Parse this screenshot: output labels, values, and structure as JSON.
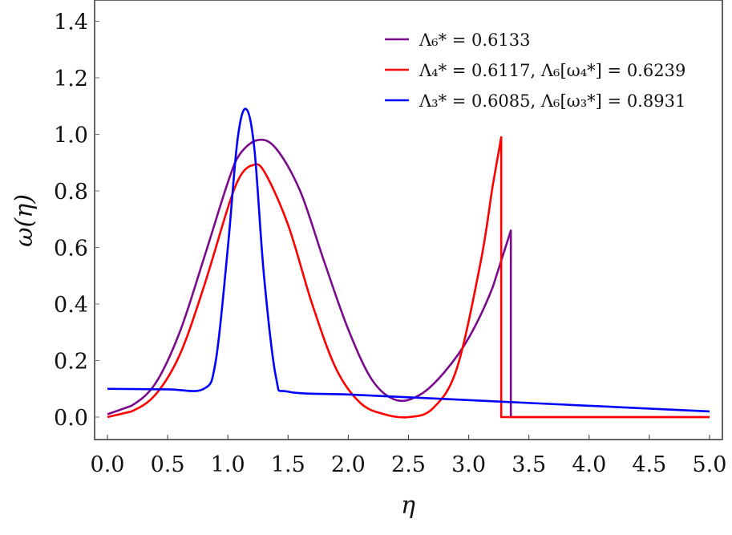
{
  "chart_data": {
    "type": "line",
    "title": "",
    "xlabel": "η",
    "ylabel": "ω(η)",
    "xlim": [
      -0.05,
      5.05
    ],
    "ylim": [
      -0.07,
      1.47
    ],
    "xticks": [
      "0.0",
      "0.5",
      "1.0",
      "1.5",
      "2.0",
      "2.5",
      "3.0",
      "3.5",
      "4.0",
      "4.5",
      "5.0"
    ],
    "yticks": [
      "0.0",
      "0.2",
      "0.4",
      "0.6",
      "0.8",
      "1.0",
      "1.2",
      "1.4"
    ],
    "grid": false,
    "legend_position": "upper right",
    "series": [
      {
        "name": "Λ6* = 0.6133",
        "color": "#7a0a8c",
        "x": [
          0.0,
          0.2,
          0.4,
          0.6,
          0.8,
          1.0,
          1.1,
          1.25,
          1.4,
          1.6,
          1.8,
          2.0,
          2.2,
          2.4,
          2.6,
          2.8,
          3.0,
          3.2,
          3.35,
          3.35,
          5.0
        ],
        "y": [
          0.01,
          0.04,
          0.12,
          0.3,
          0.56,
          0.83,
          0.93,
          0.98,
          0.95,
          0.8,
          0.55,
          0.31,
          0.13,
          0.06,
          0.08,
          0.16,
          0.28,
          0.46,
          0.66,
          0.0,
          0.0
        ]
      },
      {
        "name": "Λ4* = 0.6117,  Λ6[ω4*] = 0.6239",
        "color": "#ff0000",
        "x": [
          0.0,
          0.2,
          0.4,
          0.6,
          0.8,
          1.0,
          1.1,
          1.2,
          1.3,
          1.5,
          1.7,
          1.9,
          2.1,
          2.3,
          2.5,
          2.7,
          2.9,
          3.1,
          3.2,
          3.27,
          3.27,
          5.0
        ],
        "y": [
          0.0,
          0.02,
          0.08,
          0.22,
          0.46,
          0.74,
          0.85,
          0.89,
          0.87,
          0.68,
          0.4,
          0.17,
          0.05,
          0.01,
          0.0,
          0.03,
          0.17,
          0.55,
          0.82,
          0.99,
          0.0,
          0.0
        ]
      },
      {
        "name": "Λ3* = 0.6085,  Λ6[ω3*] = 0.8931",
        "color": "#0000ff",
        "x": [
          0.0,
          0.5,
          0.8,
          0.9,
          1.0,
          1.08,
          1.15,
          1.22,
          1.3,
          1.4,
          1.5,
          2.0,
          2.5,
          3.0,
          3.5,
          4.0,
          4.5,
          5.0
        ],
        "y": [
          0.1,
          0.098,
          0.1,
          0.2,
          0.6,
          0.98,
          1.09,
          0.95,
          0.5,
          0.14,
          0.09,
          0.08,
          0.07,
          0.06,
          0.05,
          0.04,
          0.03,
          0.02
        ]
      }
    ]
  },
  "legend": {
    "items": [
      {
        "text": "Λ₆* = 0.6133",
        "color": "#7a0a8c"
      },
      {
        "text": "Λ₄* = 0.6117,  Λ₆[ω₄*] = 0.6239",
        "color": "#ff0000"
      },
      {
        "text": "Λ₃* = 0.6085,  Λ₆[ω₃*] = 0.8931",
        "color": "#0000ff"
      }
    ]
  }
}
